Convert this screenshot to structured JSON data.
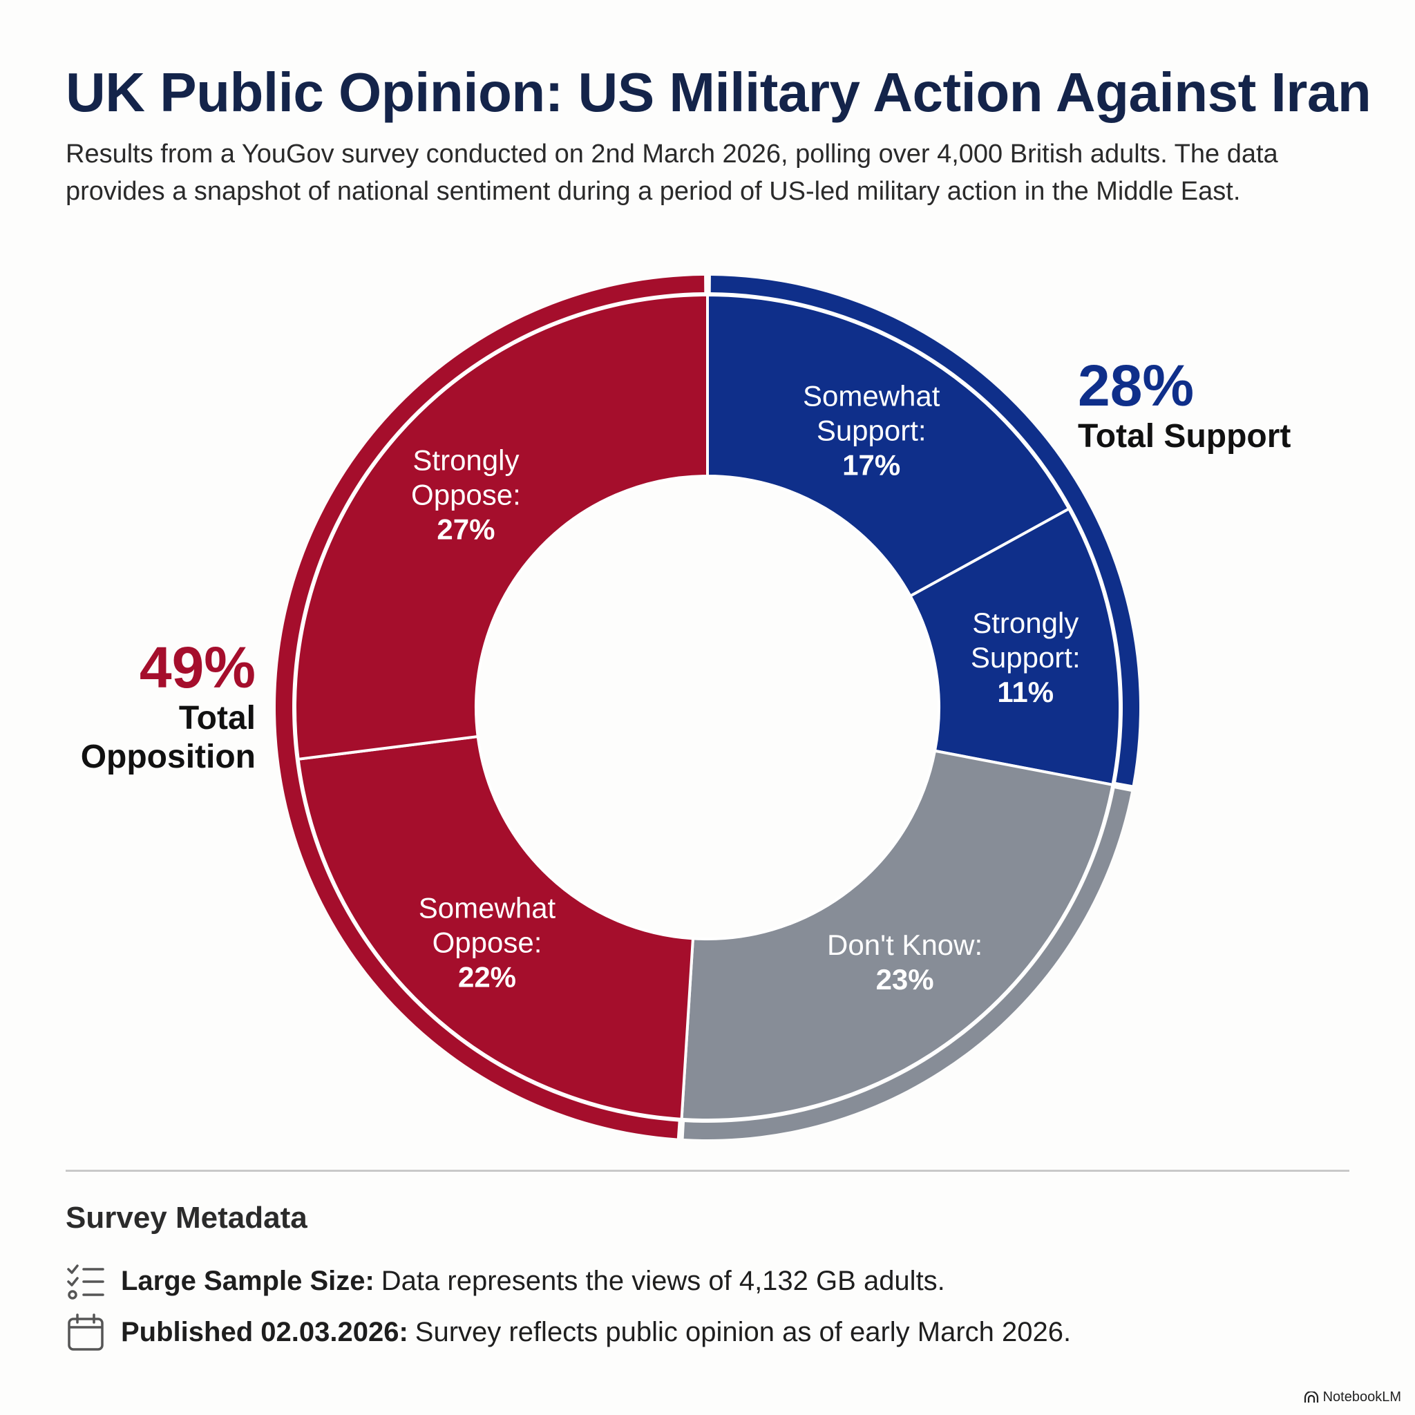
{
  "header": {
    "title": "UK Public Opinion: US Military Action Against Iran",
    "subtitle_line1": "Results from a YouGov survey conducted on 2nd March 2026, polling over 4,000 British adults. The data",
    "subtitle_line2": "provides a snapshot of national sentiment during a period of US-led military action in the Middle East."
  },
  "chart_data": {
    "type": "pie",
    "variant": "donut",
    "title": "UK Public Opinion: US Military Action Against Iran",
    "unit": "%",
    "slices": [
      {
        "key": "somewhat_support",
        "label_lines": [
          "Somewhat",
          "Support:"
        ],
        "value_text": "17%",
        "value": 17,
        "group": "support",
        "color": "#0f2f8a"
      },
      {
        "key": "strongly_support",
        "label_lines": [
          "Strongly",
          "Support:"
        ],
        "value_text": "11%",
        "value": 11,
        "group": "support",
        "color": "#0f2f8a"
      },
      {
        "key": "dont_know",
        "label_lines": [
          "Don't Know:"
        ],
        "value_text": "23%",
        "value": 23,
        "group": "none",
        "color": "#878d97"
      },
      {
        "key": "somewhat_oppose",
        "label_lines": [
          "Somewhat",
          "Oppose:"
        ],
        "value_text": "22%",
        "value": 22,
        "group": "oppose",
        "color": "#a50e2c"
      },
      {
        "key": "strongly_oppose",
        "label_lines": [
          "Strongly",
          "Oppose:"
        ],
        "value_text": "27%",
        "value": 27,
        "group": "oppose",
        "color": "#a50e2c"
      }
    ],
    "groups": [
      {
        "key": "support",
        "value": 28,
        "value_text": "28%",
        "label_lines": [
          "Total Support"
        ],
        "color": "#0f2f8a",
        "side": "right"
      },
      {
        "key": "oppose",
        "value": 49,
        "value_text": "49%",
        "label_lines": [
          "Total",
          "Opposition"
        ],
        "color": "#a50e2c",
        "side": "left"
      }
    ]
  },
  "metadata": {
    "heading": "Survey Metadata",
    "items": [
      {
        "icon": "checklist-icon",
        "bold": "Large Sample Size:",
        "text": "Data represents the views of 4,132 GB adults."
      },
      {
        "icon": "calendar-icon",
        "bold": "Published 02.03.2026:",
        "text": "Survey reflects public opinion as of early March 2026."
      }
    ]
  },
  "branding": {
    "label": "NotebookLM"
  }
}
